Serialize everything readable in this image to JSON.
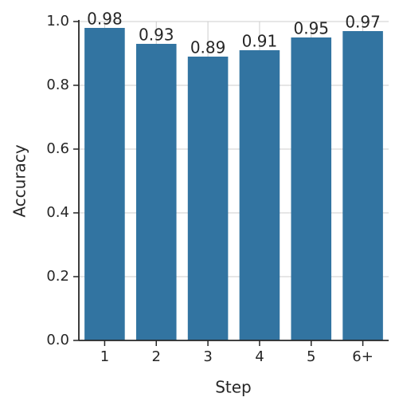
{
  "chart_data": {
    "type": "bar",
    "x_label": "Step",
    "y_label": "Accuracy",
    "categories": [
      "1",
      "2",
      "3",
      "4",
      "5",
      "6+"
    ],
    "values": [
      0.98,
      0.93,
      0.89,
      0.91,
      0.95,
      0.97
    ],
    "color": "#3274a1",
    "ylim": [
      0,
      1
    ],
    "yticks": [
      {
        "value": 0,
        "label": "0.0"
      },
      0.2,
      0.4,
      0.6,
      0.8,
      {
        "value": 1,
        "label": "1.0"
      }
    ],
    "grid": true
  }
}
